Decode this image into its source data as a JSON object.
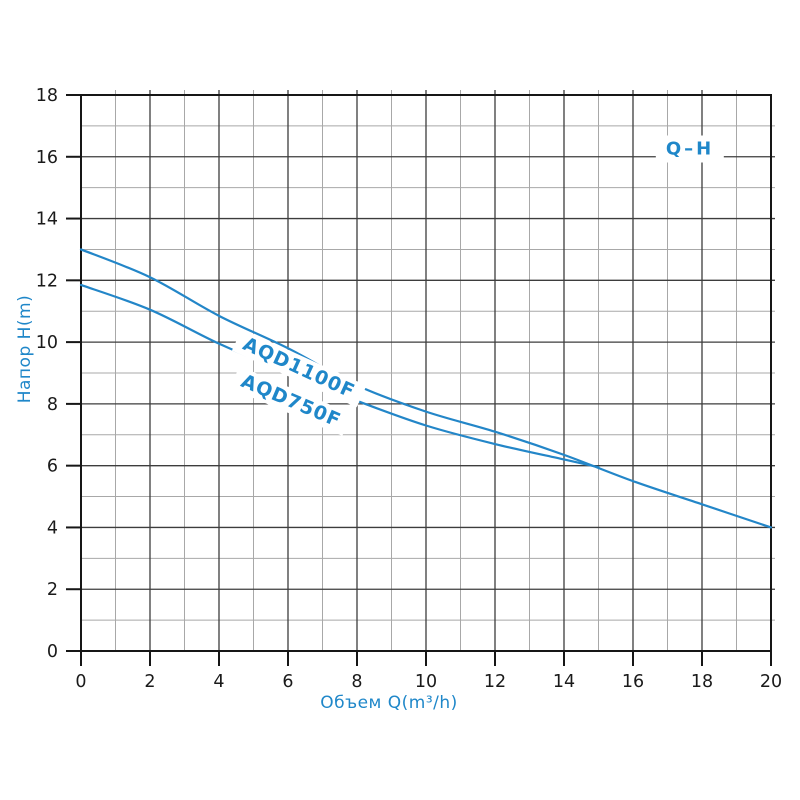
{
  "page": {
    "background": "#ffffff"
  },
  "chart_data": {
    "type": "line",
    "title": "Q–H",
    "xlabel": "Объем Q(m³/h)",
    "ylabel": "Напор H(m)",
    "xlim": [
      0,
      20
    ],
    "ylim": [
      0,
      18
    ],
    "x_major_ticks": [
      0,
      2,
      4,
      6,
      8,
      10,
      12,
      14,
      16,
      18,
      20
    ],
    "y_major_ticks": [
      0,
      2,
      4,
      6,
      8,
      10,
      12,
      14,
      16,
      18
    ],
    "minor_grid_step": 1,
    "grid": "on",
    "legend_position": "inline-rotated-labels",
    "series": [
      {
        "name": "AQD1100F",
        "x": [
          0,
          2,
          4,
          6,
          8,
          10,
          12,
          14,
          16,
          18,
          20
        ],
        "y": [
          13.0,
          12.1,
          10.85,
          9.8,
          8.6,
          7.75,
          7.1,
          6.35,
          5.5,
          4.75,
          4.0
        ]
      },
      {
        "name": "AQD750F",
        "x": [
          0,
          2,
          4,
          6,
          8,
          10,
          12,
          14,
          15
        ],
        "y": [
          11.85,
          11.05,
          9.95,
          9.0,
          8.1,
          7.3,
          6.7,
          6.2,
          5.95
        ]
      }
    ],
    "colors": {
      "curve": "#2386c8",
      "accent_text": "#1f87c9",
      "grid_major": "#3d3d3d",
      "grid_minor": "#a8a8a8",
      "axis_border": "#161616",
      "tick_text": "#1a1a1a"
    }
  }
}
